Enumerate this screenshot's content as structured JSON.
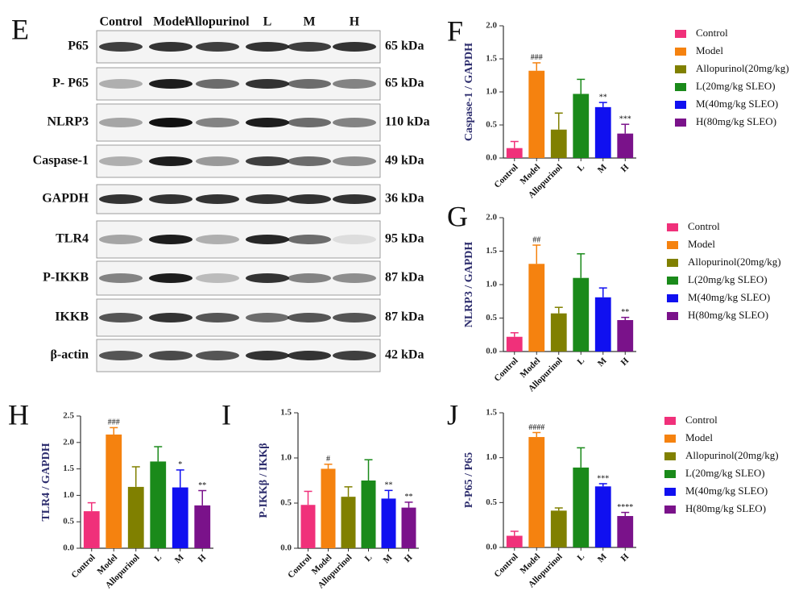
{
  "blot": {
    "panel": "E",
    "columns": [
      "Control",
      "Model",
      "Allopurinol",
      "L",
      "M",
      "H"
    ],
    "rows": [
      {
        "label": "P65",
        "kda": "65 kDa"
      },
      {
        "label": "P- P65",
        "kda": "65 kDa"
      },
      {
        "label": "NLRP3",
        "kda": "110 kDa"
      },
      {
        "label": "Caspase-1",
        "kda": "49 kDa"
      },
      {
        "label": "GAPDH",
        "kda": "36 kDa"
      },
      {
        "label": "TLR4",
        "kda": "95 kDa"
      },
      {
        "label": "P-IKKB",
        "kda": "87 kDa"
      },
      {
        "label": "IKKB",
        "kda": "87 kDa"
      },
      {
        "label": "β-actin",
        "kda": "42 kDa"
      }
    ]
  },
  "chart_data": [
    {
      "type": "bar",
      "panel": "F",
      "ylabel": "Caspase-1 / GAPDH",
      "categories": [
        "Control",
        "Model",
        "Allopurinol",
        "L",
        "M",
        "H"
      ],
      "values": [
        0.15,
        1.32,
        0.43,
        0.97,
        0.77,
        0.37
      ],
      "errors": [
        0.1,
        0.12,
        0.25,
        0.22,
        0.07,
        0.14
      ],
      "annotations": [
        null,
        "###",
        null,
        null,
        "**",
        "***"
      ],
      "colors": [
        "#f0307a",
        "#f5820f",
        "#808000",
        "#1a8a1a",
        "#1010f0",
        "#7a128a"
      ],
      "legend": [
        "Control",
        "Model",
        "Allopurinol(20mg/kg)",
        "L(20mg/kg  SLEO)",
        "M(40mg/kg SLEO)",
        "H(80mg/kg SLEO)"
      ],
      "ylim": [
        0,
        2
      ],
      "yticks": [
        {
          "value": 0,
          "label": "0.0"
        },
        0.5,
        {
          "value": 1,
          "label": "1.0"
        },
        1.5,
        {
          "value": 2,
          "label": "2.0"
        }
      ]
    },
    {
      "type": "bar",
      "panel": "G",
      "ylabel": "NLRP3 / GAPDH",
      "categories": [
        "Control",
        "Model",
        "Allopurinol",
        "L",
        "M",
        "H"
      ],
      "values": [
        0.22,
        1.31,
        0.57,
        1.1,
        0.81,
        0.47
      ],
      "errors": [
        0.06,
        0.28,
        0.09,
        0.36,
        0.14,
        0.04
      ],
      "annotations": [
        null,
        "##",
        null,
        null,
        null,
        "**"
      ],
      "colors": [
        "#f0307a",
        "#f5820f",
        "#808000",
        "#1a8a1a",
        "#1010f0",
        "#7a128a"
      ],
      "legend": [
        "Control",
        "Model",
        "Allopurinol(20mg/kg)",
        "L(20mg/kg  SLEO)",
        "M(40mg/kg SLEO)",
        "H(80mg/kg SLEO)"
      ],
      "ylim": [
        0,
        2
      ],
      "yticks": [
        {
          "value": 0,
          "label": "0.0"
        },
        0.5,
        {
          "value": 1,
          "label": "1.0"
        },
        1.5,
        {
          "value": 2,
          "label": "2.0"
        }
      ]
    },
    {
      "type": "bar",
      "panel": "H",
      "ylabel": "TLR4 / GAPDH",
      "categories": [
        "Control",
        "Model",
        "Allopurinol",
        "L",
        "M",
        "H"
      ],
      "values": [
        0.7,
        2.15,
        1.16,
        1.64,
        1.15,
        0.81
      ],
      "errors": [
        0.16,
        0.13,
        0.38,
        0.28,
        0.33,
        0.28
      ],
      "annotations": [
        null,
        "###",
        null,
        null,
        "*",
        "**"
      ],
      "colors": [
        "#f0307a",
        "#f5820f",
        "#808000",
        "#1a8a1a",
        "#1010f0",
        "#7a128a"
      ],
      "ylim": [
        0,
        2.5
      ],
      "yticks": [
        {
          "value": 0,
          "label": "0.0"
        },
        0.5,
        {
          "value": 1,
          "label": "1.0"
        },
        1.5,
        {
          "value": 2,
          "label": "2.0"
        },
        2.5
      ]
    },
    {
      "type": "bar",
      "panel": "I",
      "ylabel": "P-IKKβ / IKKβ",
      "categories": [
        "Control",
        "Model",
        "Allopurinol",
        "L",
        "M",
        "H"
      ],
      "values": [
        0.48,
        0.88,
        0.57,
        0.75,
        0.55,
        0.45
      ],
      "errors": [
        0.15,
        0.05,
        0.11,
        0.23,
        0.09,
        0.06
      ],
      "annotations": [
        null,
        "#",
        null,
        null,
        "**",
        "**"
      ],
      "colors": [
        "#f0307a",
        "#f5820f",
        "#808000",
        "#1a8a1a",
        "#1010f0",
        "#7a128a"
      ],
      "ylim": [
        0,
        1.5
      ],
      "yticks": [
        {
          "value": 0,
          "label": "0.0"
        },
        0.5,
        {
          "value": 1,
          "label": "1.0"
        },
        1.5
      ]
    },
    {
      "type": "bar",
      "panel": "J",
      "ylabel": "P-P65 / P65",
      "categories": [
        "Control",
        "Model",
        "Allopurinol",
        "L",
        "M",
        "H"
      ],
      "values": [
        0.13,
        1.23,
        0.41,
        0.89,
        0.68,
        0.35
      ],
      "errors": [
        0.05,
        0.05,
        0.03,
        0.22,
        0.03,
        0.04
      ],
      "annotations": [
        null,
        "####",
        null,
        null,
        "***",
        "****"
      ],
      "colors": [
        "#f0307a",
        "#f5820f",
        "#808000",
        "#1a8a1a",
        "#1010f0",
        "#7a128a"
      ],
      "legend": [
        "Control",
        "Model",
        "Allopurinol(20mg/kg)",
        "L(20mg/kg SLEO)",
        "M(40mg/kg SLEO)",
        "H(80mg/kg SLEO)"
      ],
      "ylim": [
        0,
        1.5
      ],
      "yticks": [
        {
          "value": 0,
          "label": "0.0"
        },
        0.5,
        {
          "value": 1,
          "label": "1.0"
        },
        1.5
      ]
    }
  ]
}
